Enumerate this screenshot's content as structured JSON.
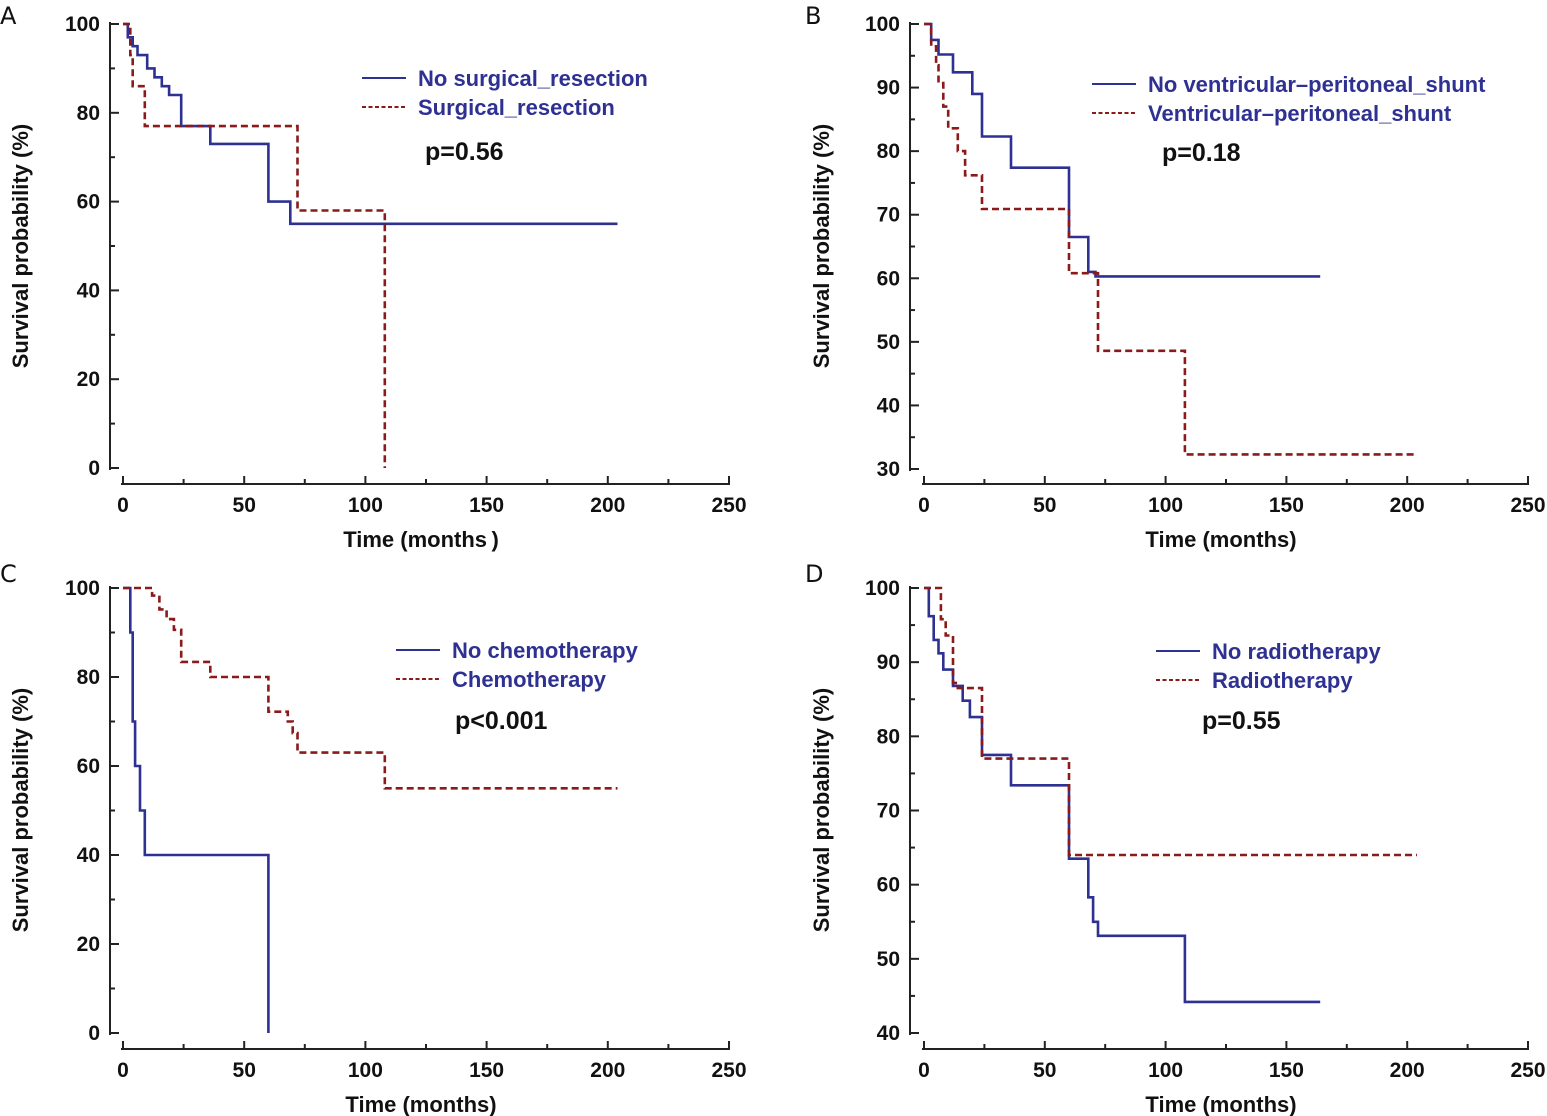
{
  "colors": {
    "solid": "#2e3192",
    "dashed": "#8b1a1a",
    "axis": "#222222",
    "legend_text": "#2e3192"
  },
  "chart_data": [
    {
      "type": "line",
      "panel": "A",
      "xlabel": "Time (months )",
      "ylabel": "Survival probability (%)",
      "xlim": [
        -5,
        255
      ],
      "ylim": [
        -2,
        101
      ],
      "xticks": [
        0,
        50,
        100,
        150,
        200,
        250
      ],
      "yticks": [
        0,
        20,
        40,
        60,
        80,
        100
      ],
      "pvalue": "p=0.56",
      "series": [
        {
          "name": "No surgical_resection",
          "style": "solid",
          "x": [
            0,
            2,
            2,
            4,
            4,
            6,
            6,
            10,
            10,
            13,
            13,
            16,
            16,
            19,
            19,
            24,
            24,
            36,
            36,
            60,
            60,
            69,
            69,
            204
          ],
          "y": [
            100,
            100,
            97,
            97,
            95,
            95,
            93,
            93,
            90,
            90,
            88,
            88,
            86,
            86,
            84,
            84,
            77,
            77,
            73,
            73,
            60,
            60,
            55,
            55
          ]
        },
        {
          "name": "Surgical_resection",
          "style": "dashed",
          "x": [
            0,
            3,
            3,
            4,
            4,
            9,
            9,
            72,
            72,
            108,
            108
          ],
          "y": [
            100,
            100,
            93,
            93,
            86,
            86,
            77,
            77,
            58,
            58,
            0
          ]
        }
      ]
    },
    {
      "type": "line",
      "panel": "B",
      "xlabel": "Time (months)",
      "ylabel": "Survival probability (%)",
      "xlim": [
        -5,
        255
      ],
      "ylim": [
        29,
        100.5
      ],
      "xticks": [
        0,
        50,
        100,
        150,
        200,
        250
      ],
      "yticks": [
        30,
        40,
        50,
        60,
        70,
        80,
        90,
        100
      ],
      "pvalue": "p=0.18",
      "series": [
        {
          "name": "No ventricular–peritoneal_shunt",
          "style": "solid",
          "x": [
            0,
            3,
            3,
            6,
            6,
            12,
            12,
            20,
            20,
            24,
            24,
            36,
            36,
            60,
            60,
            68,
            68,
            71,
            71,
            164
          ],
          "y": [
            100,
            100,
            97.5,
            97.5,
            95.2,
            95.2,
            92.4,
            92.4,
            89,
            89,
            82.3,
            82.3,
            77.4,
            77.4,
            66.5,
            66.5,
            61,
            61,
            60.3,
            60.3
          ]
        },
        {
          "name": "Ventricular–peritoneal_shunt",
          "style": "dashed",
          "x": [
            0,
            3,
            3,
            5,
            5,
            6,
            6,
            8,
            8,
            10,
            10,
            14,
            14,
            17,
            17,
            24,
            24,
            60,
            60,
            72,
            72,
            108,
            108,
            204
          ],
          "y": [
            100,
            100,
            96.5,
            96.5,
            93.5,
            93.5,
            90.7,
            90.7,
            87,
            87,
            83.6,
            83.6,
            80,
            80,
            76.2,
            76.2,
            70.9,
            70.9,
            60.8,
            60.8,
            48.6,
            48.6,
            32.3,
            32.3
          ]
        }
      ]
    },
    {
      "type": "line",
      "panel": "C",
      "xlabel": "Time (months)",
      "ylabel": "Survival probability (%)",
      "xlim": [
        -5,
        255
      ],
      "ylim": [
        -2,
        101
      ],
      "xticks": [
        0,
        50,
        100,
        150,
        200,
        250
      ],
      "yticks": [
        0,
        20,
        40,
        60,
        80,
        100
      ],
      "pvalue": "p<0.001",
      "series": [
        {
          "name": "No chemotherapy",
          "style": "solid",
          "x": [
            0,
            3,
            3,
            4,
            4,
            5,
            5,
            7,
            7,
            9,
            9,
            60,
            60
          ],
          "y": [
            100,
            100,
            90,
            90,
            70,
            70,
            60,
            60,
            50,
            50,
            40,
            40,
            0
          ]
        },
        {
          "name": "Chemotherapy",
          "style": "dashed",
          "x": [
            0,
            12,
            12,
            15,
            15,
            18,
            18,
            21,
            21,
            24,
            24,
            36,
            36,
            60,
            60,
            68,
            68,
            70,
            70,
            72,
            72,
            108,
            108,
            204
          ],
          "y": [
            100,
            100,
            98.3,
            98.3,
            95.2,
            95.2,
            93,
            93,
            90.6,
            90.6,
            83.4,
            83.4,
            80,
            80,
            72.2,
            72.2,
            70,
            70,
            67.4,
            67.4,
            63,
            63,
            55,
            55
          ]
        }
      ]
    },
    {
      "type": "line",
      "panel": "D",
      "xlabel": "Time (months)",
      "ylabel": "Survival probability (%)",
      "xlim": [
        -5,
        255
      ],
      "ylim": [
        39.5,
        100.5
      ],
      "xticks": [
        0,
        50,
        100,
        150,
        200,
        250
      ],
      "yticks": [
        40,
        50,
        60,
        70,
        80,
        90,
        100
      ],
      "pvalue": "p=0.55",
      "series": [
        {
          "name": "No radiotherapy",
          "style": "solid",
          "x": [
            0,
            2,
            2,
            4,
            4,
            6,
            6,
            8,
            8,
            12,
            12,
            16,
            16,
            19,
            19,
            24,
            24,
            36,
            36,
            60,
            60,
            68,
            68,
            70,
            70,
            72,
            72,
            108,
            108,
            164
          ],
          "y": [
            100,
            100,
            96.2,
            96.2,
            93,
            93,
            91.2,
            91.2,
            89,
            89,
            86.8,
            86.8,
            84.8,
            84.8,
            82.6,
            82.6,
            77.5,
            77.5,
            73.4,
            73.4,
            63.5,
            63.5,
            58.3,
            58.3,
            55,
            55,
            53.1,
            53.1,
            44.2,
            44.2
          ]
        },
        {
          "name": "Radiotherapy",
          "style": "dashed",
          "x": [
            0,
            7,
            7,
            9,
            9,
            12,
            12,
            14,
            14,
            24,
            24,
            60,
            60,
            204
          ],
          "y": [
            100,
            100,
            95.8,
            95.8,
            93.6,
            93.6,
            87.2,
            87.2,
            86.5,
            86.5,
            77,
            77,
            64,
            64
          ]
        }
      ]
    }
  ]
}
